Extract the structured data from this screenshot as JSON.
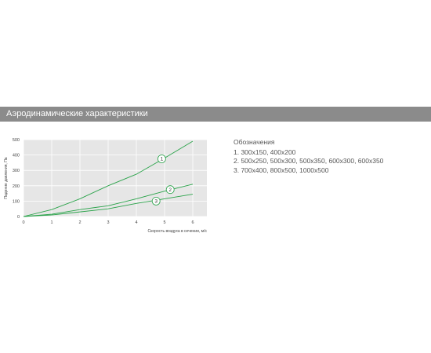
{
  "header": {
    "title": "Аэродинамические характеристики"
  },
  "legend": {
    "title": "Обозначения",
    "items": [
      "1. 300х150, 400х200",
      "2. 500х250, 500х300, 500х350, 600х300, 600х350",
      "3. 700х400, 800х500, 1000х500"
    ]
  },
  "colors": {
    "header_bg": "#8b8b8b",
    "plot_bg": "#e6e6e6",
    "grid": "#ffffff",
    "series": "#2aa34a"
  },
  "chart_data": {
    "type": "line",
    "xlabel": "Скорость воздуха в сечении, м/с",
    "ylabel": "Падение давления, Па",
    "xlim": [
      0,
      6.5
    ],
    "ylim": [
      0,
      500
    ],
    "xticks": [
      0,
      1,
      2,
      3,
      4,
      5,
      6
    ],
    "yticks": [
      0,
      100,
      200,
      300,
      400,
      500
    ],
    "grid": true,
    "series": [
      {
        "name": "1",
        "x": [
          0,
          1,
          2,
          3,
          4,
          5,
          6
        ],
        "y": [
          0,
          45,
          115,
          200,
          275,
          380,
          490
        ],
        "label_at": [
          4.9,
          375
        ]
      },
      {
        "name": "2",
        "x": [
          0,
          1,
          2,
          3,
          4,
          5,
          6
        ],
        "y": [
          0,
          15,
          45,
          70,
          115,
          165,
          210
        ],
        "label_at": [
          5.2,
          175
        ]
      },
      {
        "name": "3",
        "x": [
          0,
          1,
          2,
          3,
          4,
          5,
          6
        ],
        "y": [
          0,
          10,
          30,
          50,
          85,
          115,
          145
        ],
        "label_at": [
          4.7,
          100
        ]
      }
    ]
  }
}
